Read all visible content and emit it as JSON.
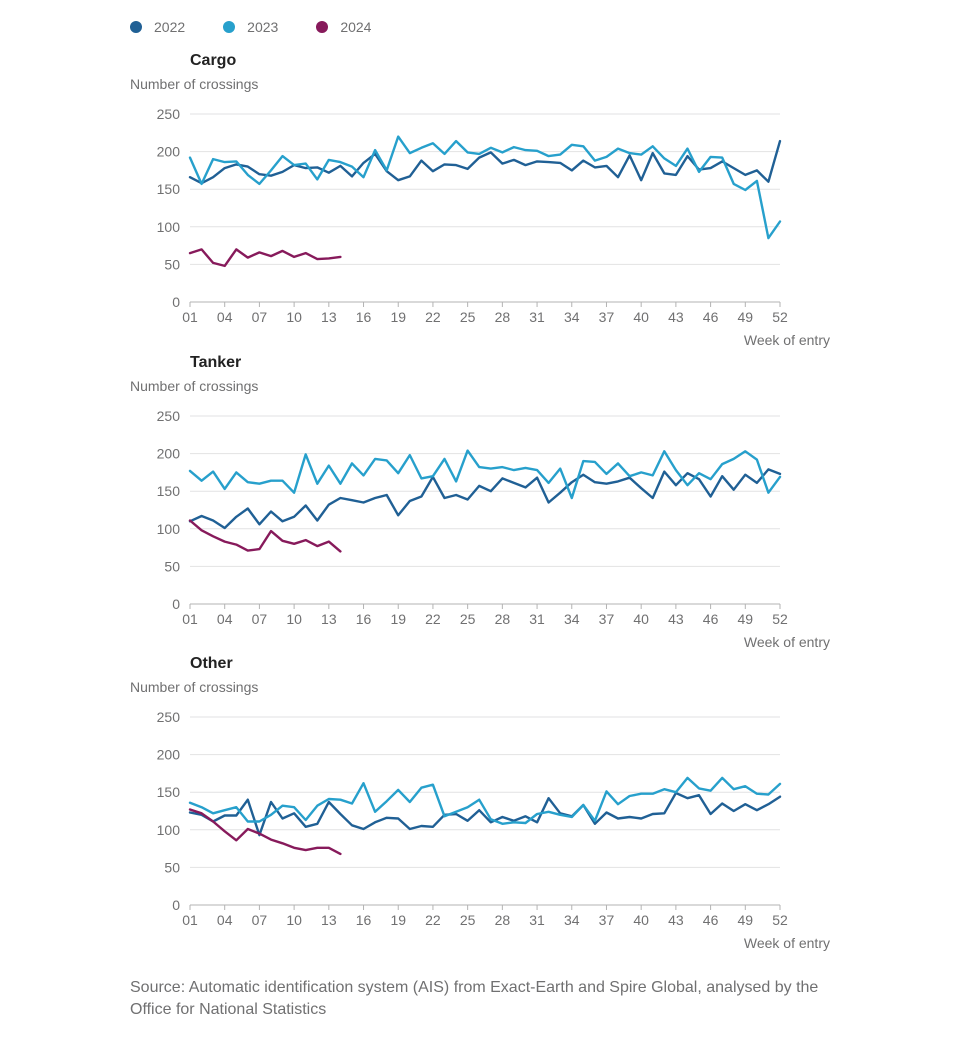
{
  "legend": [
    {
      "label": "2022",
      "color": "#206095"
    },
    {
      "label": "2023",
      "color": "#27A0CC"
    },
    {
      "label": "2024",
      "color": "#871A5B"
    }
  ],
  "source": "Source: Automatic identification system (AIS) from Exact-Earth and Spire Global, analysed by the Office for National Statistics",
  "chart_data": [
    {
      "type": "line",
      "title": "Cargo",
      "ylabel": "Number of crossings",
      "xlabel": "Week of entry",
      "xlim": [
        1,
        52
      ],
      "ylim": [
        0,
        250
      ],
      "x_ticks": [
        "01",
        "04",
        "07",
        "10",
        "13",
        "16",
        "19",
        "22",
        "25",
        "28",
        "31",
        "34",
        "37",
        "40",
        "43",
        "46",
        "49",
        "52"
      ],
      "y_ticks": [
        "0",
        "50",
        "100",
        "150",
        "200",
        "250"
      ],
      "grid": "horizontal",
      "series": [
        {
          "name": "2022",
          "color": "#206095",
          "x_start": 1,
          "values": [
            166,
            158,
            166,
            178,
            183,
            180,
            170,
            168,
            173,
            182,
            178,
            179,
            172,
            181,
            167,
            185,
            197,
            174,
            162,
            167,
            188,
            174,
            183,
            182,
            177,
            192,
            199,
            184,
            189,
            182,
            187,
            186,
            185,
            175,
            188,
            179,
            181,
            166,
            195,
            162,
            198,
            171,
            169,
            194,
            176,
            178,
            187,
            178,
            169,
            175,
            160,
            214
          ]
        },
        {
          "name": "2023",
          "color": "#27A0CC",
          "x_start": 1,
          "values": [
            192,
            157,
            190,
            186,
            187,
            169,
            157,
            175,
            194,
            182,
            184,
            163,
            189,
            186,
            180,
            166,
            202,
            175,
            220,
            198,
            205,
            211,
            197,
            214,
            199,
            197,
            205,
            199,
            206,
            202,
            201,
            194,
            196,
            209,
            207,
            188,
            193,
            204,
            198,
            196,
            207,
            191,
            181,
            204,
            173,
            193,
            192,
            157,
            149,
            161,
            85,
            107
          ]
        },
        {
          "name": "2024",
          "color": "#871A5B",
          "x_start": 1,
          "values": [
            65,
            70,
            52,
            48,
            70,
            59,
            66,
            61,
            68,
            60,
            65,
            57,
            58,
            60
          ]
        }
      ]
    },
    {
      "type": "line",
      "title": "Tanker",
      "ylabel": "Number of crossings",
      "xlabel": "Week of entry",
      "xlim": [
        1,
        52
      ],
      "ylim": [
        0,
        250
      ],
      "x_ticks": [
        "01",
        "04",
        "07",
        "10",
        "13",
        "16",
        "19",
        "22",
        "25",
        "28",
        "31",
        "34",
        "37",
        "40",
        "43",
        "46",
        "49",
        "52"
      ],
      "y_ticks": [
        "0",
        "50",
        "100",
        "150",
        "200",
        "250"
      ],
      "grid": "horizontal",
      "series": [
        {
          "name": "2022",
          "color": "#206095",
          "x_start": 1,
          "values": [
            110,
            117,
            111,
            101,
            116,
            127,
            106,
            123,
            110,
            116,
            131,
            111,
            132,
            141,
            138,
            135,
            141,
            145,
            118,
            137,
            143,
            169,
            141,
            145,
            139,
            157,
            150,
            167,
            161,
            155,
            168,
            135,
            148,
            162,
            172,
            162,
            160,
            163,
            168,
            154,
            141,
            176,
            158,
            174,
            166,
            143,
            170,
            152,
            172,
            161,
            179,
            173
          ]
        },
        {
          "name": "2023",
          "color": "#27A0CC",
          "x_start": 1,
          "values": [
            177,
            164,
            176,
            153,
            175,
            162,
            160,
            164,
            164,
            148,
            199,
            160,
            184,
            160,
            187,
            171,
            193,
            191,
            174,
            198,
            167,
            170,
            193,
            163,
            204,
            182,
            180,
            182,
            178,
            181,
            178,
            161,
            180,
            141,
            190,
            189,
            173,
            187,
            170,
            175,
            171,
            203,
            178,
            158,
            174,
            166,
            186,
            193,
            203,
            192,
            148,
            169
          ]
        },
        {
          "name": "2024",
          "color": "#871A5B",
          "x_start": 1,
          "values": [
            111,
            98,
            90,
            83,
            79,
            71,
            73,
            97,
            84,
            80,
            85,
            77,
            83,
            70
          ]
        }
      ]
    },
    {
      "type": "line",
      "title": "Other",
      "ylabel": "Number of crossings",
      "xlabel": "Week of entry",
      "xlim": [
        1,
        52
      ],
      "ylim": [
        0,
        250
      ],
      "x_ticks": [
        "01",
        "04",
        "07",
        "10",
        "13",
        "16",
        "19",
        "22",
        "25",
        "28",
        "31",
        "34",
        "37",
        "40",
        "43",
        "46",
        "49",
        "52"
      ],
      "y_ticks": [
        "0",
        "50",
        "100",
        "150",
        "200",
        "250"
      ],
      "grid": "horizontal",
      "series": [
        {
          "name": "2022",
          "color": "#206095",
          "x_start": 1,
          "values": [
            123,
            120,
            111,
            119,
            119,
            140,
            93,
            137,
            115,
            122,
            104,
            108,
            137,
            121,
            106,
            101,
            110,
            116,
            115,
            101,
            105,
            104,
            120,
            121,
            112,
            126,
            110,
            117,
            112,
            118,
            110,
            142,
            122,
            118,
            133,
            108,
            123,
            115,
            117,
            115,
            121,
            122,
            149,
            142,
            146,
            121,
            135,
            125,
            134,
            126,
            134,
            144
          ]
        },
        {
          "name": "2023",
          "color": "#27A0CC",
          "x_start": 1,
          "values": [
            136,
            130,
            122,
            126,
            130,
            111,
            111,
            120,
            132,
            130,
            113,
            132,
            141,
            140,
            135,
            162,
            124,
            138,
            153,
            137,
            156,
            160,
            118,
            124,
            130,
            140,
            114,
            108,
            110,
            109,
            121,
            124,
            120,
            117,
            133,
            112,
            151,
            134,
            145,
            148,
            148,
            154,
            150,
            169,
            155,
            152,
            169,
            154,
            158,
            148,
            147,
            161
          ]
        },
        {
          "name": "2024",
          "color": "#871A5B",
          "x_start": 1,
          "values": [
            127,
            122,
            111,
            98,
            86,
            101,
            95,
            87,
            82,
            76,
            73,
            76,
            76,
            68
          ]
        }
      ]
    }
  ]
}
